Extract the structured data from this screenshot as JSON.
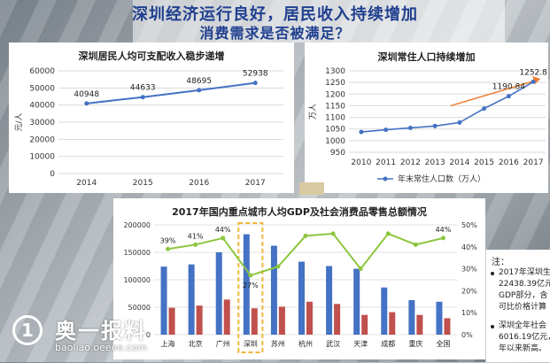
{
  "slide": {
    "title_line1": "深圳经济运行良好，居民收入持续增加",
    "title_line2": "消费需求是否被满足？"
  },
  "colors": {
    "title": "#1f3f8f",
    "line_blue": "#4472c4",
    "bar_blue": "#4472c4",
    "bar_red": "#c0504d",
    "line_green": "#8dc63f",
    "arrow_orange": "#ed7d31",
    "highlight_box": "#f0b63c"
  },
  "chart_data": [
    {
      "type": "line",
      "title": "深圳居民人均可支配收入稳步递增",
      "ylabel": "元/人",
      "x": [
        "2014",
        "2015",
        "2016",
        "2017"
      ],
      "series": [
        {
          "values": [
            40948,
            44633,
            48695,
            52938
          ]
        }
      ],
      "data_labels": [
        "40948",
        "44633",
        "48695",
        "52938"
      ],
      "ylim": [
        0,
        60000
      ],
      "yticks": [
        "0",
        "10000",
        "20000",
        "30000",
        "40000",
        "50000",
        "60000"
      ],
      "grid": true
    },
    {
      "type": "line",
      "title": "深圳常住人口持续增加",
      "ylabel": "万人",
      "x": [
        "2010",
        "2011",
        "2012",
        "2013",
        "2014",
        "2015",
        "2016",
        "2017"
      ],
      "series": [
        {
          "name": "年末常住人口数（万人）",
          "values": [
            1037.2,
            1046.74,
            1054.74,
            1062.89,
            1077.89,
            1137.87,
            1190.84,
            1252.83
          ]
        }
      ],
      "data_labels": {
        "2016": "1190.84",
        "2017": "1252.8"
      },
      "ylim": [
        950,
        1300
      ],
      "yticks": [
        "950",
        "1000",
        "1050",
        "1100",
        "1150",
        "1200",
        "1250",
        "1300"
      ],
      "legend": "bottom",
      "grid": true
    },
    {
      "type": "bar",
      "title": "2017年国内重点城市人均GDP及社会消费品零售总额情况",
      "categories": [
        "上海",
        "北京",
        "广州",
        "深圳",
        "苏州",
        "杭州",
        "武汉",
        "天津",
        "成都",
        "重庆",
        "全国"
      ],
      "series": [
        {
          "values": [
            124000,
            128000,
            150000,
            183000,
            162000,
            133000,
            125000,
            120000,
            86000,
            63000,
            60000
          ]
        },
        {
          "values": [
            49000,
            53000,
            64000,
            48000,
            51000,
            60000,
            56000,
            36000,
            41000,
            36000,
            30000
          ]
        },
        {
          "values": [
            39,
            41,
            44,
            27,
            31,
            45,
            46,
            30,
            46,
            41,
            44
          ],
          "axis": "right",
          "type": "line"
        }
      ],
      "ylim": [
        0,
        200000
      ],
      "yticks": [
        "0",
        "50000",
        "100000",
        "150000",
        "200000"
      ],
      "y2lim": [
        0,
        50
      ],
      "y2ticks": [
        "0%",
        "10%",
        "20%",
        "30%",
        "40%",
        "50%"
      ],
      "data_labels": {
        "上海": "39%",
        "北京": "41%",
        "广州": "44%",
        "深圳": "27%",
        "全国": "44%"
      },
      "highlight": "深圳"
    }
  ],
  "notes": {
    "head": "注：",
    "item1": [
      "2017年深圳生",
      "22438.39亿元",
      "GDP部分，含",
      "可比价格计算"
    ],
    "item2": [
      "深圳全年社会",
      "6016.19亿元，",
      "年以来新高。"
    ]
  },
  "watermark": {
    "circle": "1",
    "text": "奥一报料",
    "url": "baoliao.oeeee.com"
  }
}
